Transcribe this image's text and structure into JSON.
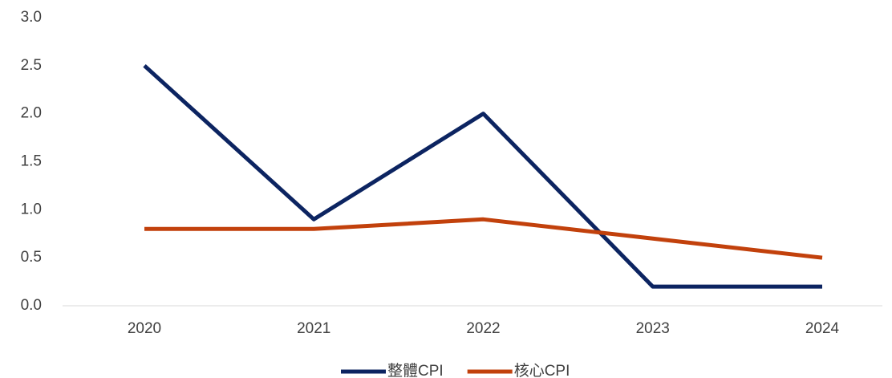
{
  "chart_data": {
    "type": "line",
    "categories": [
      "2020",
      "2021",
      "2022",
      "2023",
      "2024"
    ],
    "series": [
      {
        "name": "整體CPI",
        "color": "#0c2461",
        "values": [
          2.5,
          0.9,
          2.0,
          0.2,
          0.2
        ]
      },
      {
        "name": "核心CPI",
        "color": "#c2410c",
        "values": [
          0.8,
          0.8,
          0.9,
          0.7,
          0.5
        ]
      }
    ],
    "ylim": [
      0,
      3
    ],
    "yticks": [
      {
        "value": 0,
        "label": "0.0"
      },
      0.5,
      {
        "value": 1,
        "label": "1.0"
      },
      1.5,
      {
        "value": 2,
        "label": "2.0"
      },
      2.5,
      {
        "value": 3,
        "label": "3.0"
      }
    ],
    "grid": false,
    "legend": "bottom"
  }
}
